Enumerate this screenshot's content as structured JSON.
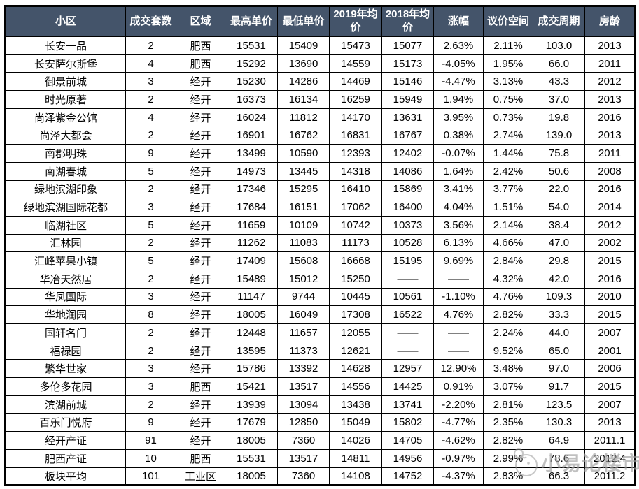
{
  "table": {
    "columns": [
      {
        "key": "community",
        "label": "小区"
      },
      {
        "key": "deals",
        "label": "成交套数"
      },
      {
        "key": "district",
        "label": "区域"
      },
      {
        "key": "max_price",
        "label": "最高单价"
      },
      {
        "key": "min_price",
        "label": "最低单价"
      },
      {
        "key": "avg_2019",
        "label": "2019年均价"
      },
      {
        "key": "avg_2018",
        "label": "2018年均价"
      },
      {
        "key": "change",
        "label": "涨幅"
      },
      {
        "key": "bargain",
        "label": "议价空间"
      },
      {
        "key": "cycle",
        "label": "成交周期"
      },
      {
        "key": "age",
        "label": "房龄"
      }
    ],
    "rows": [
      [
        "长安一品",
        "2",
        "肥西",
        "15531",
        "15409",
        "15473",
        "15077",
        "2.63%",
        "2.11%",
        "103.0",
        "2013"
      ],
      [
        "长安萨尔斯堡",
        "4",
        "肥西",
        "15292",
        "13690",
        "14559",
        "15173",
        "-4.05%",
        "1.95%",
        "66.0",
        "2011"
      ],
      [
        "御景前城",
        "3",
        "经开",
        "15230",
        "14286",
        "14469",
        "15146",
        "-4.47%",
        "3.13%",
        "43.3",
        "2012"
      ],
      [
        "时光原著",
        "2",
        "经开",
        "16373",
        "16134",
        "16259",
        "15949",
        "1.94%",
        "0.75%",
        "37.0",
        "2013"
      ],
      [
        "尚泽紫金公馆",
        "4",
        "经开",
        "16024",
        "11812",
        "14170",
        "13631",
        "3.95%",
        "0.73%",
        "19.8",
        "2016"
      ],
      [
        "尚泽大都会",
        "2",
        "经开",
        "16901",
        "16762",
        "16831",
        "16767",
        "0.38%",
        "2.74%",
        "139.0",
        "2013"
      ],
      [
        "南郡明珠",
        "9",
        "经开",
        "13499",
        "10590",
        "12393",
        "12402",
        "-0.07%",
        "1.44%",
        "75.8",
        "2011"
      ],
      [
        "南湖春城",
        "5",
        "经开",
        "14973",
        "13445",
        "14318",
        "14086",
        "1.64%",
        "2.42%",
        "50.6",
        "2008"
      ],
      [
        "绿地滨湖印象",
        "2",
        "经开",
        "17346",
        "15295",
        "16410",
        "15869",
        "3.41%",
        "3.77%",
        "22.0",
        "2016"
      ],
      [
        "绿地滨湖国际花都",
        "3",
        "经开",
        "17684",
        "16151",
        "17062",
        "16400",
        "4.04%",
        "1.51%",
        "54.0",
        "2014"
      ],
      [
        "临湖社区",
        "5",
        "经开",
        "11659",
        "10109",
        "10742",
        "10373",
        "3.56%",
        "2.14%",
        "38.4",
        "2012"
      ],
      [
        "汇林园",
        "2",
        "经开",
        "11262",
        "11083",
        "11173",
        "10528",
        "6.13%",
        "4.66%",
        "47.0",
        "2002"
      ],
      [
        "汇峰苹果小镇",
        "5",
        "经开",
        "17409",
        "15608",
        "16668",
        "15195",
        "9.69%",
        "2.84%",
        "29.8",
        "2015"
      ],
      [
        "华冶天然居",
        "2",
        "经开",
        "15489",
        "15012",
        "15250",
        "——",
        "——",
        "4.32%",
        "42.0",
        "2016"
      ],
      [
        "华凤国际",
        "3",
        "经开",
        "11147",
        "9744",
        "10445",
        "10561",
        "-1.10%",
        "4.76%",
        "109.3",
        "2010"
      ],
      [
        "华地润园",
        "8",
        "经开",
        "18005",
        "16049",
        "17308",
        "16522",
        "4.76%",
        "2.82%",
        "33.3",
        "2015"
      ],
      [
        "国轩名门",
        "2",
        "经开",
        "12448",
        "11657",
        "12055",
        "——",
        "——",
        "2.24%",
        "44.0",
        "2007"
      ],
      [
        "福禄园",
        "2",
        "经开",
        "13595",
        "11373",
        "12621",
        "——",
        "——",
        "9.52%",
        "65.0",
        "2001"
      ],
      [
        "繁华世家",
        "3",
        "经开",
        "15786",
        "13392",
        "14628",
        "12957",
        "12.90%",
        "3.48%",
        "97.0",
        "2006"
      ],
      [
        "多伦多花园",
        "3",
        "肥西",
        "15421",
        "13517",
        "14556",
        "14425",
        "0.91%",
        "3.07%",
        "91.7",
        "2015"
      ],
      [
        "滨湖前城",
        "2",
        "经开",
        "13939",
        "13094",
        "13438",
        "13741",
        "-2.20%",
        "2.81%",
        "123.5",
        "2007"
      ],
      [
        "百乐门悦府",
        "9",
        "经开",
        "17679",
        "12850",
        "15049",
        "15802",
        "-4.77%",
        "2.35%",
        "130.3",
        "2013"
      ],
      [
        "经开产证",
        "91",
        "经开",
        "18005",
        "7360",
        "14026",
        "14705",
        "-4.62%",
        "2.82%",
        "64.9",
        "2011.1"
      ],
      [
        "肥西产证",
        "10",
        "肥西",
        "15531",
        "13517",
        "14811",
        "14956",
        "-0.97%",
        "2.99%",
        "78.6",
        "2012.4"
      ],
      [
        "板块平均",
        "101",
        "工业区",
        "18005",
        "7360",
        "14108",
        "14752",
        "-4.37%",
        "2.83%",
        "66.3",
        "2011.2"
      ]
    ]
  },
  "watermark": {
    "text": "小易论楼市"
  },
  "colors": {
    "header_bg": "#44546A",
    "header_text": "#FFFFFF",
    "border": "#000000",
    "cell_bg": "#FFFFFF",
    "cell_text": "#000000",
    "watermark": "#949494"
  }
}
